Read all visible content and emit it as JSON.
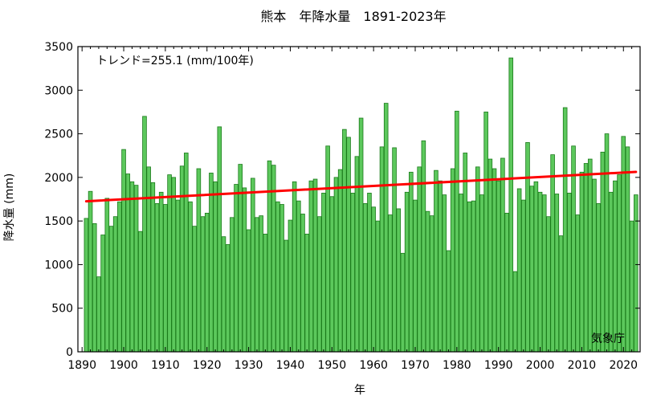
{
  "chart_data": {
    "type": "bar",
    "title": "熊本　年降水量　1891-2023年",
    "xlabel": "年",
    "ylabel": "降水量 (mm)",
    "annotation_trend": "トレンド=255.1 (mm/100年)",
    "source": "気象庁",
    "ylim": [
      0,
      3500
    ],
    "xlim": [
      1889,
      2024
    ],
    "yticks": [
      0,
      500,
      1000,
      1500,
      2000,
      2500,
      3000,
      3500
    ],
    "xticks": [
      1890,
      1900,
      1910,
      1920,
      1930,
      1940,
      1950,
      1960,
      1970,
      1980,
      1990,
      2000,
      2010,
      2020
    ],
    "grid": false,
    "bar_color": "#5cc85c",
    "bar_edge_color": "#1a7a1a",
    "trend_color": "#ff0000",
    "trend_line": {
      "x": [
        1891,
        2023
      ],
      "y": [
        1726,
        2063
      ]
    },
    "x": [
      1891,
      1892,
      1893,
      1894,
      1895,
      1896,
      1897,
      1898,
      1899,
      1900,
      1901,
      1902,
      1903,
      1904,
      1905,
      1906,
      1907,
      1908,
      1909,
      1910,
      1911,
      1912,
      1913,
      1914,
      1915,
      1916,
      1917,
      1918,
      1919,
      1920,
      1921,
      1922,
      1923,
      1924,
      1925,
      1926,
      1927,
      1928,
      1929,
      1930,
      1931,
      1932,
      1933,
      1934,
      1935,
      1936,
      1937,
      1938,
      1939,
      1940,
      1941,
      1942,
      1943,
      1944,
      1945,
      1946,
      1947,
      1948,
      1949,
      1950,
      1951,
      1952,
      1953,
      1954,
      1955,
      1956,
      1957,
      1958,
      1959,
      1960,
      1961,
      1962,
      1963,
      1964,
      1965,
      1966,
      1967,
      1968,
      1969,
      1970,
      1971,
      1972,
      1973,
      1974,
      1975,
      1976,
      1977,
      1978,
      1979,
      1980,
      1981,
      1982,
      1983,
      1984,
      1985,
      1986,
      1987,
      1988,
      1989,
      1990,
      1991,
      1992,
      1993,
      1994,
      1995,
      1996,
      1997,
      1998,
      1999,
      2000,
      2001,
      2002,
      2003,
      2004,
      2005,
      2006,
      2007,
      2008,
      2009,
      2010,
      2011,
      2012,
      2013,
      2014,
      2015,
      2016,
      2017,
      2018,
      2019,
      2020,
      2021,
      2022,
      2023
    ],
    "values": [
      1530,
      1840,
      1470,
      860,
      1340,
      1760,
      1440,
      1550,
      1720,
      2320,
      2040,
      1950,
      1910,
      1380,
      2700,
      2120,
      1940,
      1700,
      1830,
      1690,
      2030,
      2000,
      1740,
      2130,
      2280,
      1720,
      1440,
      2100,
      1550,
      1590,
      2050,
      1950,
      2580,
      1320,
      1230,
      1540,
      1920,
      2150,
      1880,
      1400,
      1990,
      1540,
      1560,
      1350,
      2190,
      2140,
      1720,
      1690,
      1280,
      1510,
      1950,
      1730,
      1580,
      1350,
      1960,
      1980,
      1550,
      1820,
      2360,
      1780,
      2000,
      2090,
      2550,
      2460,
      1820,
      2240,
      2680,
      1700,
      1820,
      1660,
      1500,
      2350,
      2850,
      1570,
      2340,
      1640,
      1130,
      1830,
      2060,
      1740,
      2120,
      2420,
      1610,
      1560,
      2080,
      1960,
      1800,
      1160,
      2100,
      2760,
      1810,
      2280,
      1720,
      1730,
      2120,
      1800,
      2750,
      2210,
      2100,
      1960,
      2220,
      1590,
      3370,
      920,
      1870,
      1740,
      2400,
      1900,
      1950,
      1830,
      1800,
      1550,
      2260,
      1810,
      1330,
      2800,
      1820,
      2360,
      1570,
      2060,
      2160,
      2210,
      1980,
      1700,
      2290,
      2500,
      1830,
      1960,
      2030,
      2470,
      2350,
      1500,
      1800
    ]
  }
}
